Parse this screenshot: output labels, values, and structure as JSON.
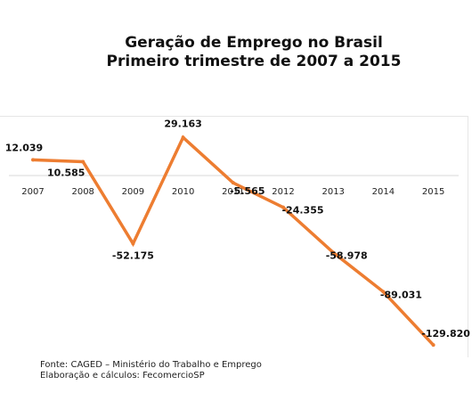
{
  "chart_data": {
    "type": "line",
    "title": "Geração de Emprego no Brasil",
    "subtitle": "Primeiro trimestre de 2007 a 2015",
    "categories": [
      "2007",
      "2008",
      "2009",
      "2010",
      "2011",
      "2012",
      "2013",
      "2014",
      "2015"
    ],
    "series": [
      {
        "values": [
          12039,
          10585,
          -52175,
          29163,
          -5565,
          -24355,
          -58978,
          -89031,
          -129820
        ],
        "labels": [
          "12.039",
          "10.585",
          "-52.175",
          "29.163",
          "-5.565",
          "-24.355",
          "-58.978",
          "-89.031",
          "-129.820"
        ],
        "color": "#ed7d31"
      }
    ],
    "xlabel": "",
    "ylabel": "",
    "grid": false,
    "legend": "none",
    "axis_color": "#d9d9d9"
  },
  "source": {
    "line1": "Fonte: CAGED – Ministério do Trabalho e Emprego",
    "line2": "Elaboração e cálculos: FecomercioSP"
  }
}
